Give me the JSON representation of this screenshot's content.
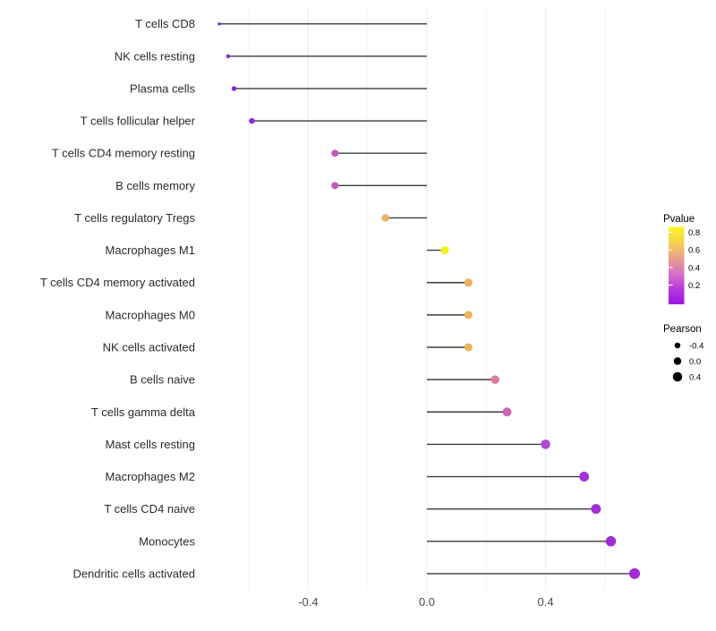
{
  "chart_data": {
    "type": "scatter",
    "subtype": "lollipop",
    "title": "",
    "xlabel": "",
    "ylabel": "",
    "x_range": [
      -0.77,
      0.77
    ],
    "x_ticks": [
      {
        "label": "-0.4",
        "value": -0.4
      },
      {
        "label": "0.0",
        "value": 0.0
      },
      {
        "label": "0.4",
        "value": 0.4
      }
    ],
    "gridlines": {
      "major_values": [
        -0.4,
        0.0,
        0.4
      ],
      "minor_values": [
        -0.6,
        -0.2,
        0.2,
        0.6
      ],
      "grid_on": true
    },
    "stem_color": "#3c3c3c",
    "rows": [
      {
        "label": "T cells CD8",
        "pearson": -0.7,
        "dot_color": "#7b2bd9",
        "dot_diameter": 3.5
      },
      {
        "label": "NK cells resting",
        "pearson": -0.67,
        "dot_color": "#8329dd",
        "dot_diameter": 4.5
      },
      {
        "label": "Plasma cells",
        "pearson": -0.65,
        "dot_color": "#8a2ad9",
        "dot_diameter": 5.5
      },
      {
        "label": "T cells follicular helper",
        "pearson": -0.59,
        "dot_color": "#8e2bd9",
        "dot_diameter": 6.5
      },
      {
        "label": "T cells CD4 memory resting",
        "pearson": -0.31,
        "dot_color": "#c45abc",
        "dot_diameter": 8
      },
      {
        "label": "B cells memory",
        "pearson": -0.31,
        "dot_color": "#c45abc",
        "dot_diameter": 8
      },
      {
        "label": "T cells regulatory  Tregs",
        "pearson": -0.14,
        "dot_color": "#ecb45f",
        "dot_diameter": 8.5
      },
      {
        "label": "Macrophages M1",
        "pearson": 0.06,
        "dot_color": "#f2f21e",
        "dot_diameter": 9
      },
      {
        "label": "T cells CD4 memory activated",
        "pearson": 0.14,
        "dot_color": "#eaaf5b",
        "dot_diameter": 9
      },
      {
        "label": "Macrophages M0",
        "pearson": 0.14,
        "dot_color": "#ecb45c",
        "dot_diameter": 9
      },
      {
        "label": "NK cells activated",
        "pearson": 0.14,
        "dot_color": "#ecb45c",
        "dot_diameter": 9
      },
      {
        "label": "B cells naive",
        "pearson": 0.23,
        "dot_color": "#dd7f97",
        "dot_diameter": 9.5
      },
      {
        "label": "T cells gamma delta",
        "pearson": 0.27,
        "dot_color": "#cf63b0",
        "dot_diameter": 10
      },
      {
        "label": "Mast cells resting",
        "pearson": 0.4,
        "dot_color": "#b148d8",
        "dot_diameter": 10.5
      },
      {
        "label": "Macrophages M2",
        "pearson": 0.53,
        "dot_color": "#a235d8",
        "dot_diameter": 11
      },
      {
        "label": "T cells CD4 naive",
        "pearson": 0.57,
        "dot_color": "#a032d6",
        "dot_diameter": 11
      },
      {
        "label": "Monocytes",
        "pearson": 0.62,
        "dot_color": "#9e2fd6",
        "dot_diameter": 11.5
      },
      {
        "label": "Dendritic cells activated",
        "pearson": 0.7,
        "dot_color": "#a32ad6",
        "dot_diameter": 12
      }
    ]
  },
  "legends": {
    "pvalue": {
      "title": "Pvalue",
      "tick_labels": [
        "0.8",
        "0.6",
        "0.4",
        "0.2"
      ],
      "tick_values": [
        0.8,
        0.6,
        0.4,
        0.2
      ],
      "gradient_top_to_bottom": [
        "#faf521",
        "#f6d054",
        "#e9a188",
        "#d673c6",
        "#b63ade",
        "#9c15e0"
      ]
    },
    "pearson": {
      "title": "Pearson",
      "items": [
        {
          "label": "-0.4",
          "dot_diameter": 6.5
        },
        {
          "label": "0.0",
          "dot_diameter": 8.5
        },
        {
          "label": "0.4",
          "dot_diameter": 10.5
        }
      ]
    }
  },
  "colors": {
    "background": "#ffffff",
    "grid_major": "#eaeaea",
    "grid_minor": "#f4f4f4",
    "stem": "#3c3c3c",
    "axis_text": "#4d4d4d",
    "label_text": "#2b2b2b",
    "size_legend_dot": "#000000"
  }
}
